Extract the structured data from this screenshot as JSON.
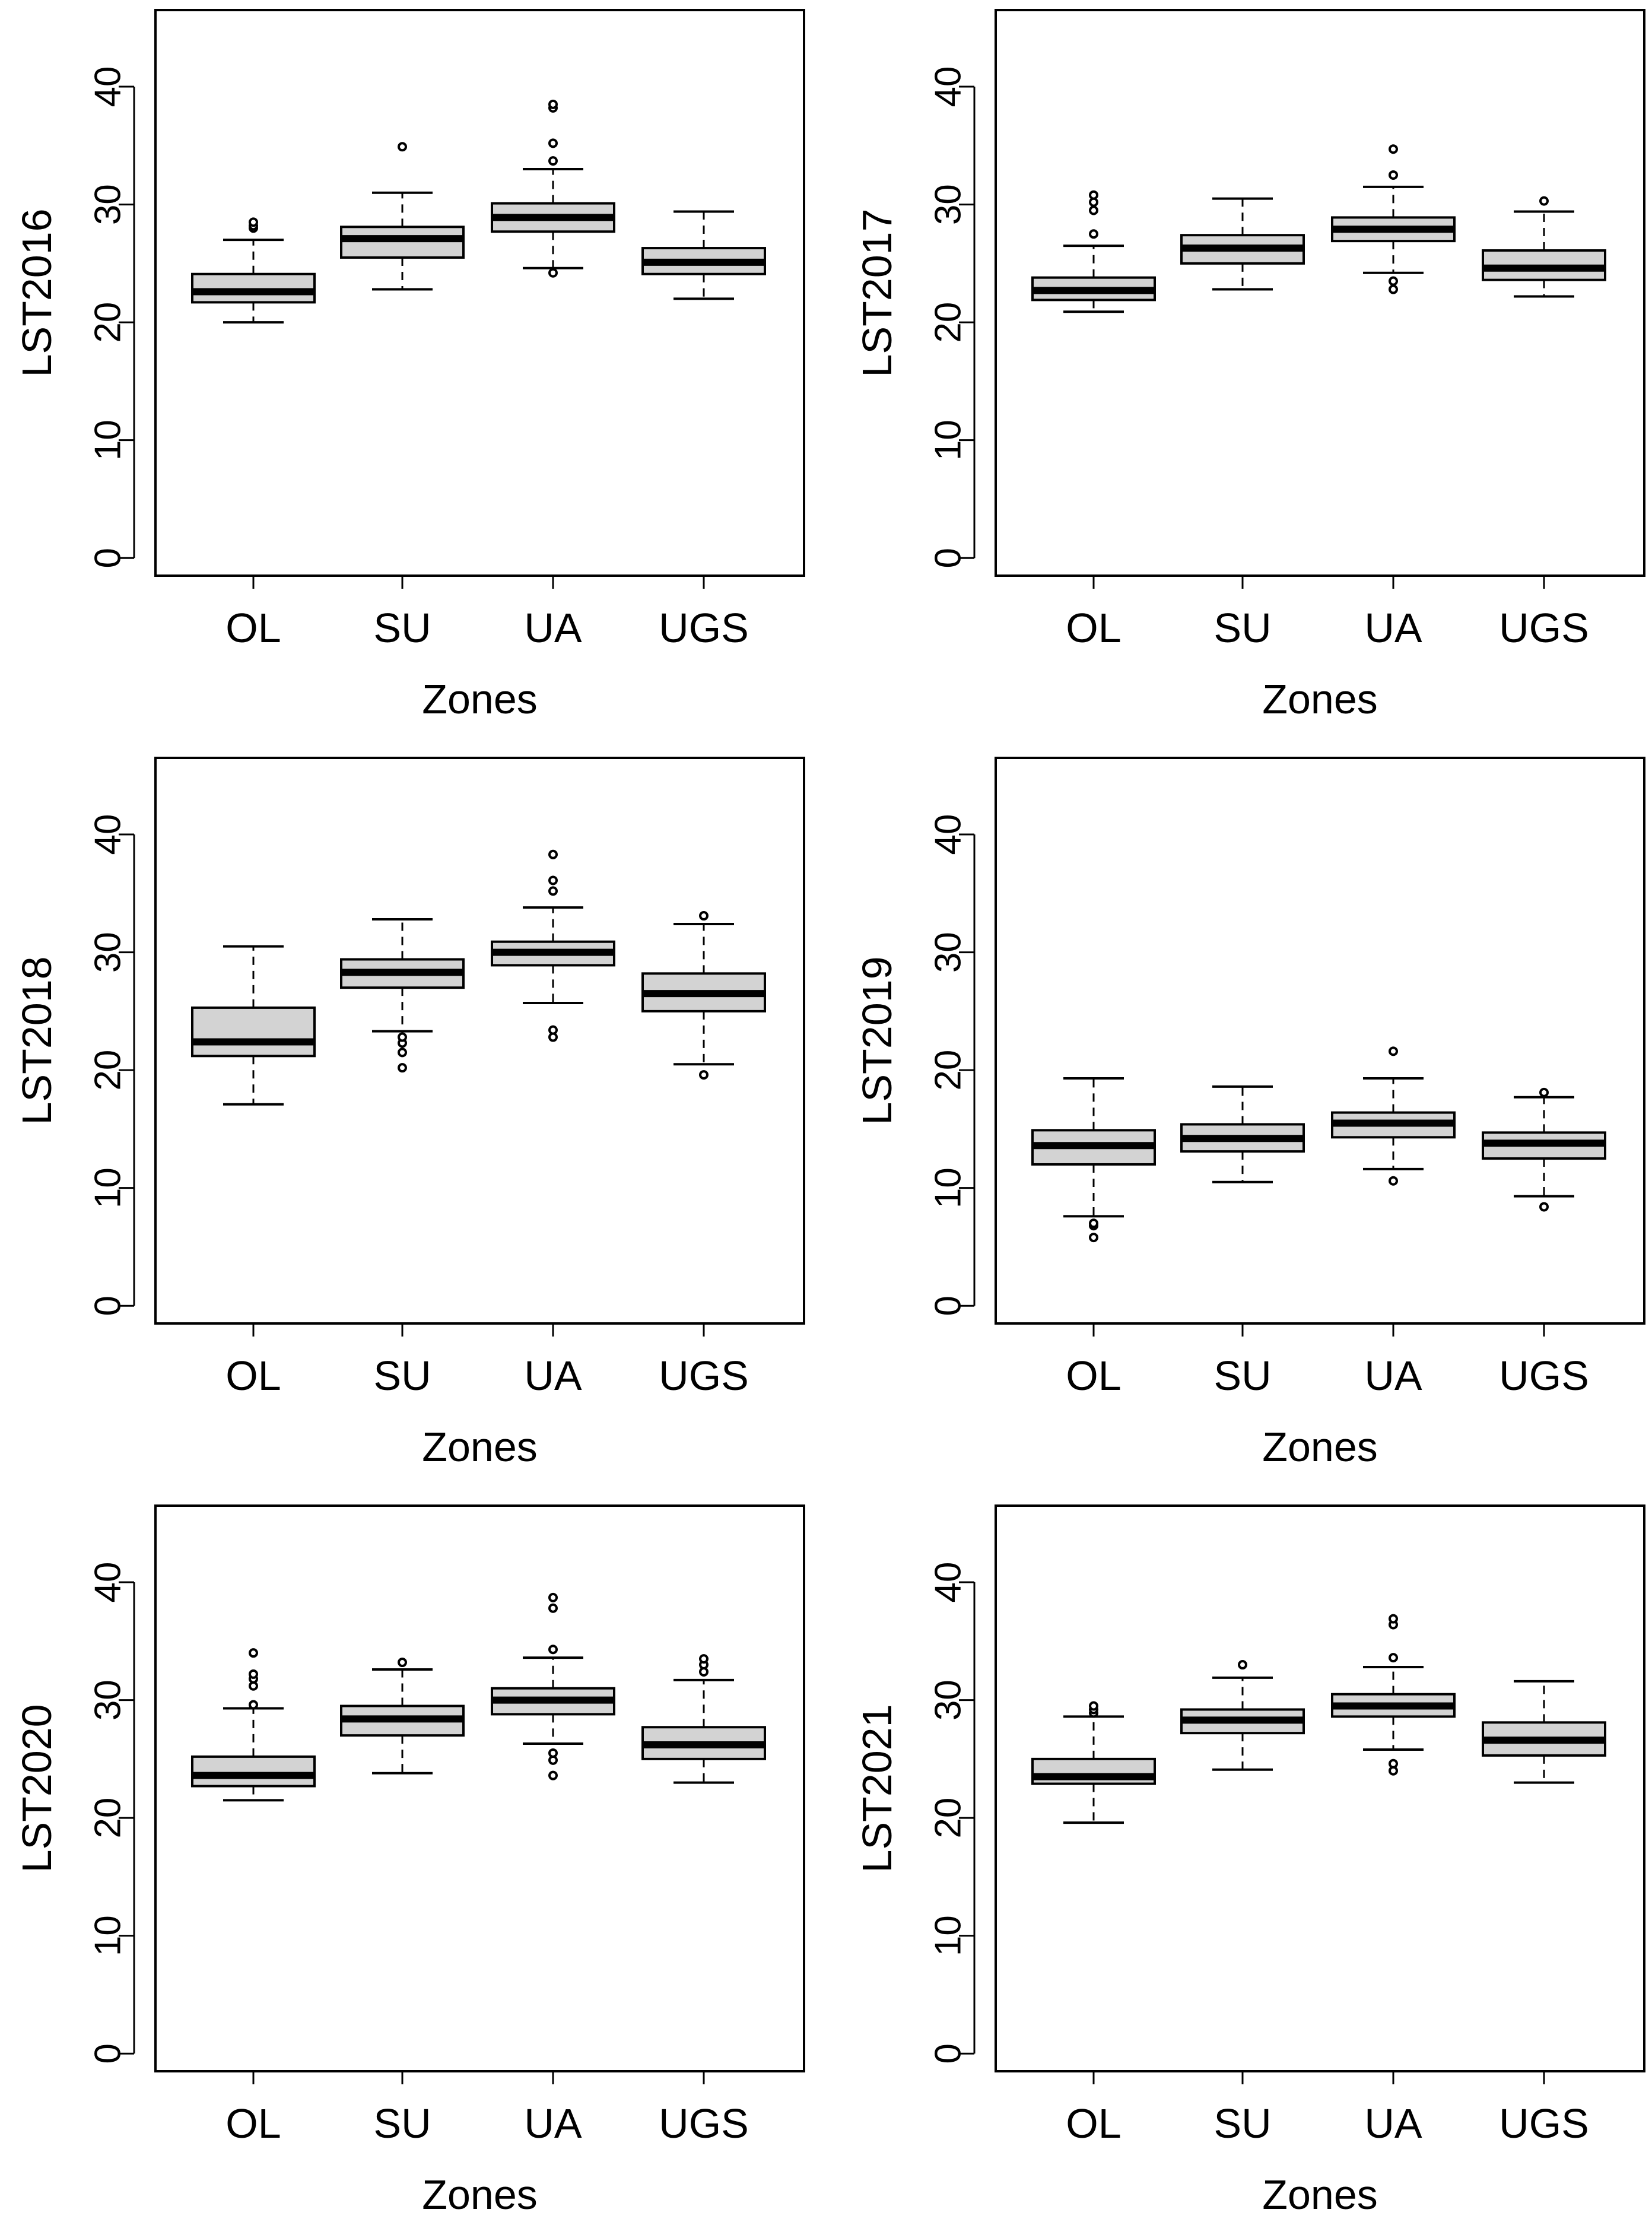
{
  "chart_data": [
    {
      "type": "boxplot",
      "ylabel": "LST2016",
      "xlabel": "Zones",
      "categories": [
        "OL",
        "SU",
        "UA",
        "UGS"
      ],
      "ylim": [
        -1.5,
        46.5
      ],
      "yticks": [
        0,
        10,
        20,
        30,
        40
      ],
      "boxes": [
        {
          "category": "OL",
          "whisker_low": 20.0,
          "q1": 21.7,
          "median": 22.6,
          "q3": 24.1,
          "whisker_high": 27.0,
          "outliers": [
            28.0,
            28.2,
            28.5
          ]
        },
        {
          "category": "SU",
          "whisker_low": 22.8,
          "q1": 25.5,
          "median": 27.1,
          "q3": 28.1,
          "whisker_high": 31.0,
          "outliers": [
            34.9
          ]
        },
        {
          "category": "UA",
          "whisker_low": 24.6,
          "q1": 27.7,
          "median": 28.9,
          "q3": 30.1,
          "whisker_high": 33.0,
          "outliers": [
            24.2,
            33.7,
            35.2,
            38.2,
            38.5
          ]
        },
        {
          "category": "UGS",
          "whisker_low": 22.0,
          "q1": 24.1,
          "median": 25.1,
          "q3": 26.3,
          "whisker_high": 29.4,
          "outliers": []
        }
      ]
    },
    {
      "type": "boxplot",
      "ylabel": "LST2017",
      "xlabel": "Zones",
      "categories": [
        "OL",
        "SU",
        "UA",
        "UGS"
      ],
      "ylim": [
        -1.5,
        46.5
      ],
      "yticks": [
        0,
        10,
        20,
        30,
        40
      ],
      "boxes": [
        {
          "category": "OL",
          "whisker_low": 20.9,
          "q1": 21.9,
          "median": 22.7,
          "q3": 23.8,
          "whisker_high": 26.5,
          "outliers": [
            27.5,
            29.5,
            30.2,
            30.8
          ]
        },
        {
          "category": "SU",
          "whisker_low": 22.8,
          "q1": 25.0,
          "median": 26.3,
          "q3": 27.4,
          "whisker_high": 30.5,
          "outliers": []
        },
        {
          "category": "UA",
          "whisker_low": 24.2,
          "q1": 26.9,
          "median": 27.9,
          "q3": 28.9,
          "whisker_high": 31.5,
          "outliers": [
            22.8,
            23.5,
            32.5,
            34.7
          ]
        },
        {
          "category": "UGS",
          "whisker_low": 22.2,
          "q1": 23.6,
          "median": 24.6,
          "q3": 26.1,
          "whisker_high": 29.4,
          "outliers": [
            30.3
          ]
        }
      ]
    },
    {
      "type": "boxplot",
      "ylabel": "LST2018",
      "xlabel": "Zones",
      "categories": [
        "OL",
        "SU",
        "UA",
        "UGS"
      ],
      "ylim": [
        -1.5,
        46.5
      ],
      "yticks": [
        0,
        10,
        20,
        30,
        40
      ],
      "boxes": [
        {
          "category": "OL",
          "whisker_low": 17.1,
          "q1": 21.2,
          "median": 22.4,
          "q3": 25.3,
          "whisker_high": 30.5,
          "outliers": []
        },
        {
          "category": "SU",
          "whisker_low": 23.3,
          "q1": 27.0,
          "median": 28.3,
          "q3": 29.4,
          "whisker_high": 32.8,
          "outliers": [
            20.2,
            21.5,
            22.3,
            22.8
          ]
        },
        {
          "category": "UA",
          "whisker_low": 25.7,
          "q1": 28.9,
          "median": 30.0,
          "q3": 30.9,
          "whisker_high": 33.8,
          "outliers": [
            22.8,
            23.4,
            35.2,
            36.1,
            38.3
          ]
        },
        {
          "category": "UGS",
          "whisker_low": 20.5,
          "q1": 25.0,
          "median": 26.5,
          "q3": 28.2,
          "whisker_high": 32.4,
          "outliers": [
            19.6,
            33.1
          ]
        }
      ]
    },
    {
      "type": "boxplot",
      "ylabel": "LST2019",
      "xlabel": "Zones",
      "categories": [
        "OL",
        "SU",
        "UA",
        "UGS"
      ],
      "ylim": [
        -1.5,
        46.5
      ],
      "yticks": [
        0,
        10,
        20,
        30,
        40
      ],
      "boxes": [
        {
          "category": "OL",
          "whisker_low": 7.6,
          "q1": 12.0,
          "median": 13.6,
          "q3": 14.9,
          "whisker_high": 19.3,
          "outliers": [
            5.8,
            6.8,
            7.0
          ]
        },
        {
          "category": "SU",
          "whisker_low": 10.5,
          "q1": 13.1,
          "median": 14.2,
          "q3": 15.4,
          "whisker_high": 18.6,
          "outliers": []
        },
        {
          "category": "UA",
          "whisker_low": 11.6,
          "q1": 14.3,
          "median": 15.5,
          "q3": 16.4,
          "whisker_high": 19.3,
          "outliers": [
            10.6,
            21.6
          ]
        },
        {
          "category": "UGS",
          "whisker_low": 9.3,
          "q1": 12.5,
          "median": 13.8,
          "q3": 14.7,
          "whisker_high": 17.7,
          "outliers": [
            8.4,
            18.1
          ]
        }
      ]
    },
    {
      "type": "boxplot",
      "ylabel": "LST2020",
      "xlabel": "Zones",
      "categories": [
        "OL",
        "SU",
        "UA",
        "UGS"
      ],
      "ylim": [
        -1.5,
        46.5
      ],
      "yticks": [
        0,
        10,
        20,
        30,
        40
      ],
      "boxes": [
        {
          "category": "OL",
          "whisker_low": 21.5,
          "q1": 22.7,
          "median": 23.6,
          "q3": 25.2,
          "whisker_high": 29.3,
          "outliers": [
            29.6,
            31.2,
            31.8,
            32.2,
            34.0
          ]
        },
        {
          "category": "SU",
          "whisker_low": 23.8,
          "q1": 27.0,
          "median": 28.4,
          "q3": 29.5,
          "whisker_high": 32.6,
          "outliers": [
            33.2
          ]
        },
        {
          "category": "UA",
          "whisker_low": 26.3,
          "q1": 28.8,
          "median": 30.0,
          "q3": 31.0,
          "whisker_high": 33.6,
          "outliers": [
            23.6,
            24.9,
            25.5,
            34.3,
            37.8,
            38.7
          ]
        },
        {
          "category": "UGS",
          "whisker_low": 23.0,
          "q1": 25.0,
          "median": 26.2,
          "q3": 27.7,
          "whisker_high": 31.7,
          "outliers": [
            32.4,
            33.0,
            33.5
          ]
        }
      ]
    },
    {
      "type": "boxplot",
      "ylabel": "LST2021",
      "xlabel": "Zones",
      "categories": [
        "OL",
        "SU",
        "UA",
        "UGS"
      ],
      "ylim": [
        -1.5,
        46.5
      ],
      "yticks": [
        0,
        10,
        20,
        30,
        40
      ],
      "boxes": [
        {
          "category": "OL",
          "whisker_low": 19.6,
          "q1": 22.9,
          "median": 23.5,
          "q3": 25.0,
          "whisker_high": 28.6,
          "outliers": [
            28.9,
            29.2,
            29.5
          ]
        },
        {
          "category": "SU",
          "whisker_low": 24.1,
          "q1": 27.2,
          "median": 28.3,
          "q3": 29.2,
          "whisker_high": 31.9,
          "outliers": [
            33.0
          ]
        },
        {
          "category": "UA",
          "whisker_low": 25.8,
          "q1": 28.6,
          "median": 29.5,
          "q3": 30.5,
          "whisker_high": 32.8,
          "outliers": [
            24.0,
            24.6,
            33.6,
            36.4,
            36.9
          ]
        },
        {
          "category": "UGS",
          "whisker_low": 23.0,
          "q1": 25.3,
          "median": 26.6,
          "q3": 28.1,
          "whisker_high": 31.6,
          "outliers": []
        }
      ]
    }
  ]
}
